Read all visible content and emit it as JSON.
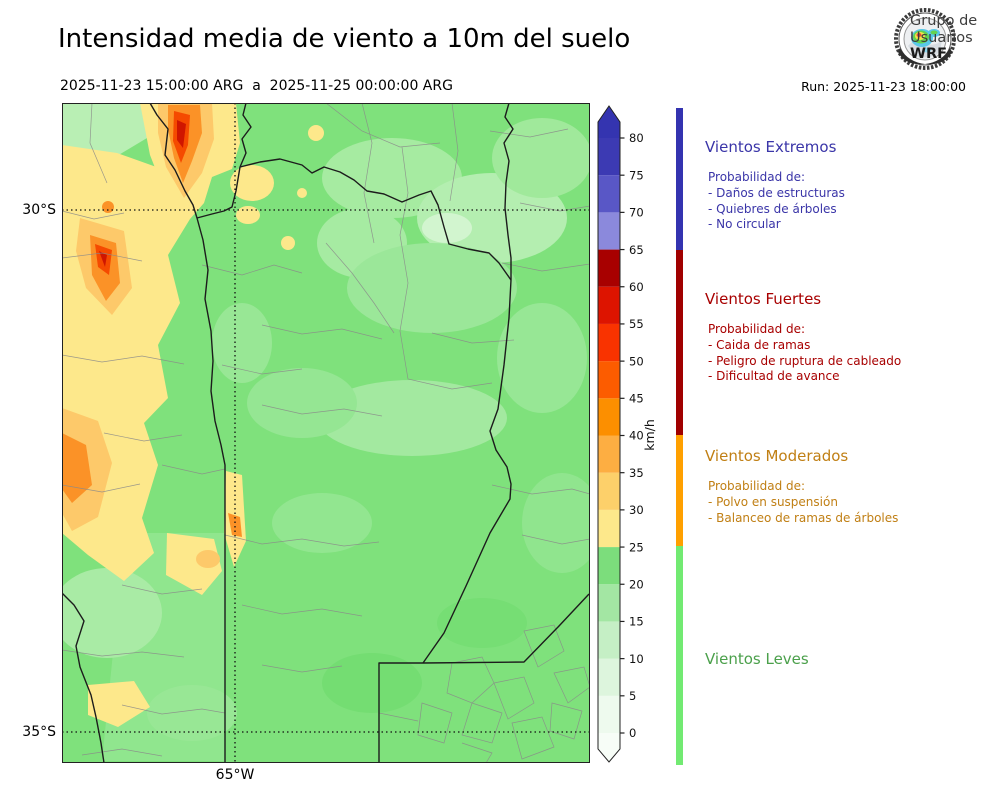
{
  "header": {
    "title": "Intensidad media de viento a 10m del suelo",
    "period": "2025-11-23 15:00:00 ARG  a  2025-11-25 00:00:00 ARG",
    "run": "Run: 2025-11-23 18:00:00",
    "logo": {
      "line1": "Grupo de",
      "line2": "Usuarios",
      "line3": "WRF"
    }
  },
  "map": {
    "lat_ticks": [
      "30°S",
      "35°S"
    ],
    "lon_ticks": [
      "65°W"
    ]
  },
  "colorbar": {
    "unit": "km/h",
    "tick_values": [
      0,
      5,
      10,
      15,
      20,
      25,
      30,
      35,
      40,
      45,
      50,
      55,
      60,
      65,
      70,
      75,
      80
    ],
    "extend_top_color": "#3434b0",
    "extend_bottom_color": "#f7fdf7",
    "segments": [
      {
        "from": 0,
        "to": 5,
        "color": "#eefaee"
      },
      {
        "from": 5,
        "to": 10,
        "color": "#ddf5dd"
      },
      {
        "from": 10,
        "to": 15,
        "color": "#c5efc5"
      },
      {
        "from": 15,
        "to": 20,
        "color": "#a3e6a3"
      },
      {
        "from": 20,
        "to": 25,
        "color": "#7cdd7c"
      },
      {
        "from": 25,
        "to": 30,
        "color": "#fde88b"
      },
      {
        "from": 30,
        "to": 35,
        "color": "#fdd06a"
      },
      {
        "from": 35,
        "to": 40,
        "color": "#fdae42"
      },
      {
        "from": 40,
        "to": 45,
        "color": "#fc8f00"
      },
      {
        "from": 45,
        "to": 50,
        "color": "#fc5c00"
      },
      {
        "from": 50,
        "to": 55,
        "color": "#f93300"
      },
      {
        "from": 55,
        "to": 60,
        "color": "#dd1400"
      },
      {
        "from": 60,
        "to": 65,
        "color": "#a80000"
      },
      {
        "from": 65,
        "to": 70,
        "color": "#8b89dc"
      },
      {
        "from": 70,
        "to": 75,
        "color": "#5957c6"
      },
      {
        "from": 75,
        "to": 80,
        "color": "#3c3ab3"
      }
    ]
  },
  "legend": {
    "categories": [
      {
        "name": "Vientos Extremos",
        "color": "#3a35a8",
        "bar_color": "#3433b0",
        "prob_label": "Probabilidad de:",
        "items": [
          "- Daños de estructuras",
          "- Quiebres de árboles",
          "- No circular"
        ]
      },
      {
        "name": "Vientos Fuertes",
        "color": "#a80000",
        "bar_color": "#a00000",
        "prob_label": "Probabilidad de:",
        "items": [
          "- Caida de ramas",
          "- Peligro de ruptura de cableado",
          "- Dificultad de avance"
        ]
      },
      {
        "name": "Vientos Moderados",
        "color": "#c07f14",
        "bar_color": "#ffa000",
        "prob_label": "Probabilidad de:",
        "items": [
          "- Polvo en suspensión",
          "- Balanceo de ramas de árboles"
        ]
      },
      {
        "name": "Vientos Leves",
        "color": "#4ba04b",
        "bar_color": "#72ea72",
        "prob_label": "",
        "items": []
      }
    ]
  }
}
